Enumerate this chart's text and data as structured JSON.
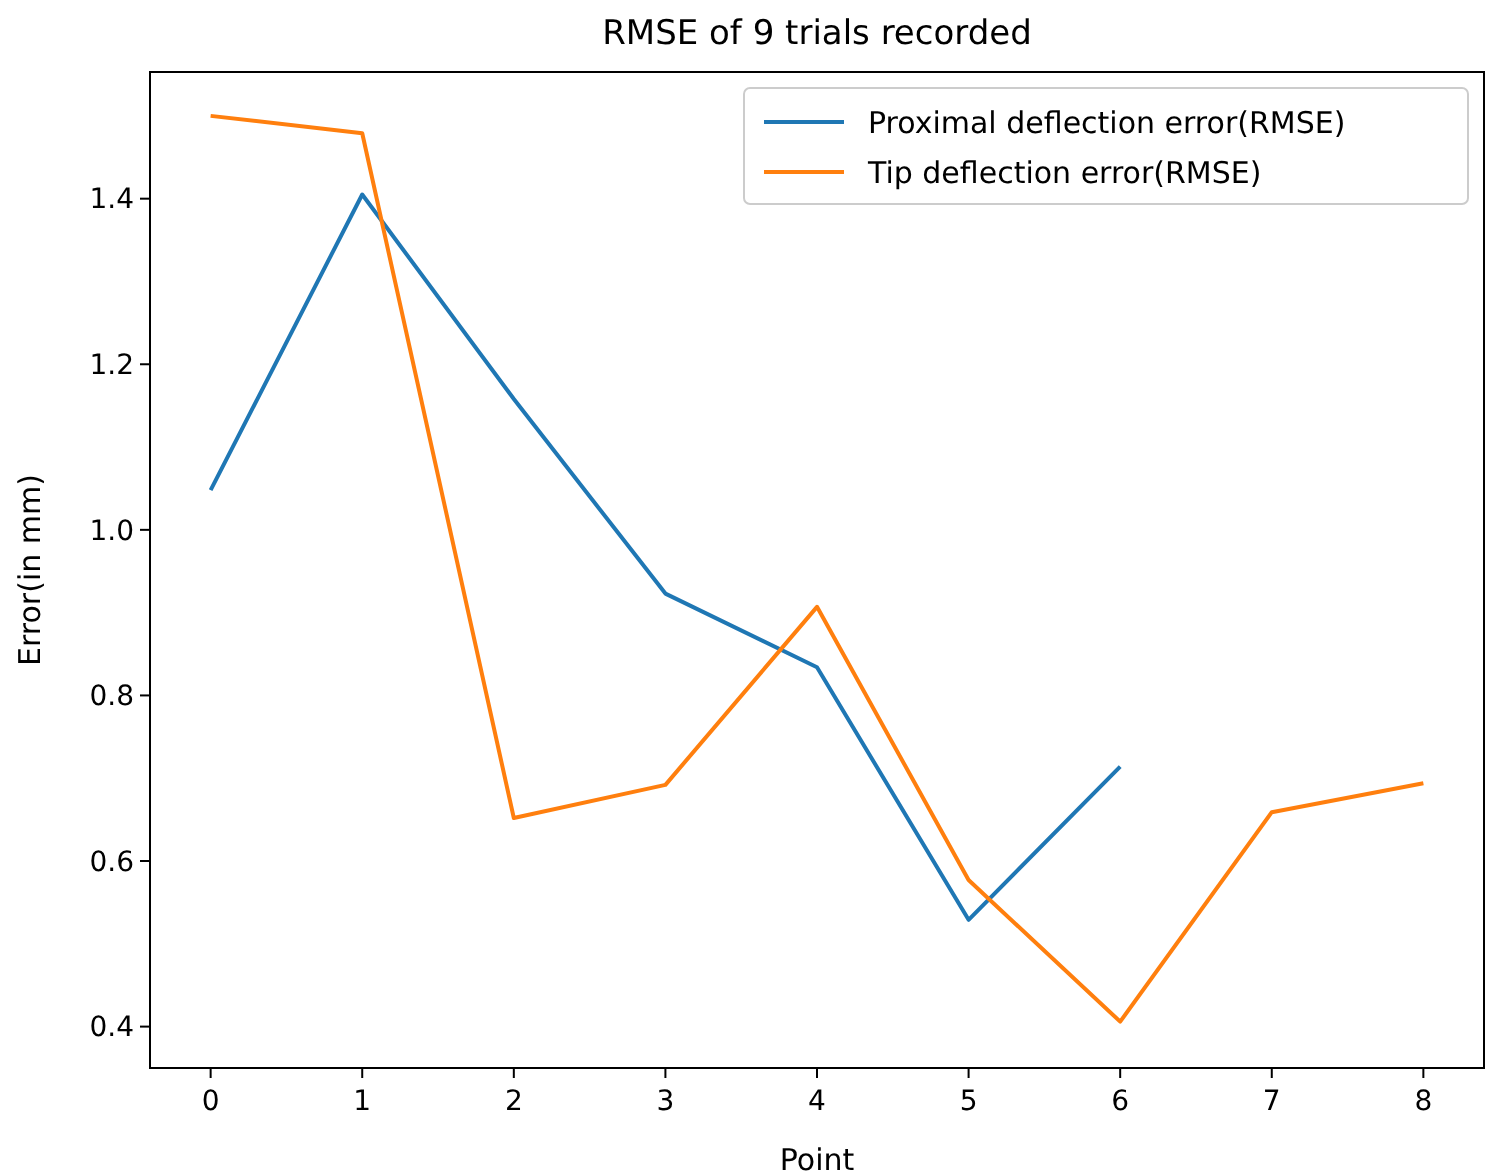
{
  "chart_data": {
    "type": "line",
    "title": "RMSE of 9 trials recorded",
    "xlabel": "Point",
    "ylabel": "Error(in mm)",
    "series": [
      {
        "name": "Proximal deflection error(RMSE)",
        "color": "#1f77b4",
        "x": [
          0,
          1,
          2,
          3,
          4,
          5,
          6
        ],
        "values": [
          1.048,
          1.405,
          1.158,
          0.923,
          0.834,
          0.529,
          0.714
        ]
      },
      {
        "name": "Tip deflection error(RMSE)",
        "color": "#ff7f0e",
        "x": [
          0,
          1,
          2,
          3,
          4,
          5,
          6,
          7,
          8
        ],
        "values": [
          1.5,
          1.479,
          0.652,
          0.692,
          0.907,
          0.577,
          0.406,
          0.659,
          0.694
        ]
      }
    ],
    "xlim": [
      -0.4,
      8.4
    ],
    "xticks": [
      0,
      1,
      2,
      3,
      4,
      5,
      6,
      7,
      8
    ],
    "ylim": [
      0.35,
      1.553
    ],
    "yticks": [
      {
        "value": 0.4,
        "label": "0.4"
      },
      {
        "value": 0.6,
        "label": "0.6"
      },
      {
        "value": 0.8,
        "label": "0.8"
      },
      {
        "value": 1.0,
        "label": "1.0"
      },
      {
        "value": 1.2,
        "label": "1.2"
      },
      {
        "value": 1.4,
        "label": "1.4"
      }
    ],
    "legend": "top right",
    "grid": false,
    "marker": "none",
    "line_style": "solid"
  }
}
